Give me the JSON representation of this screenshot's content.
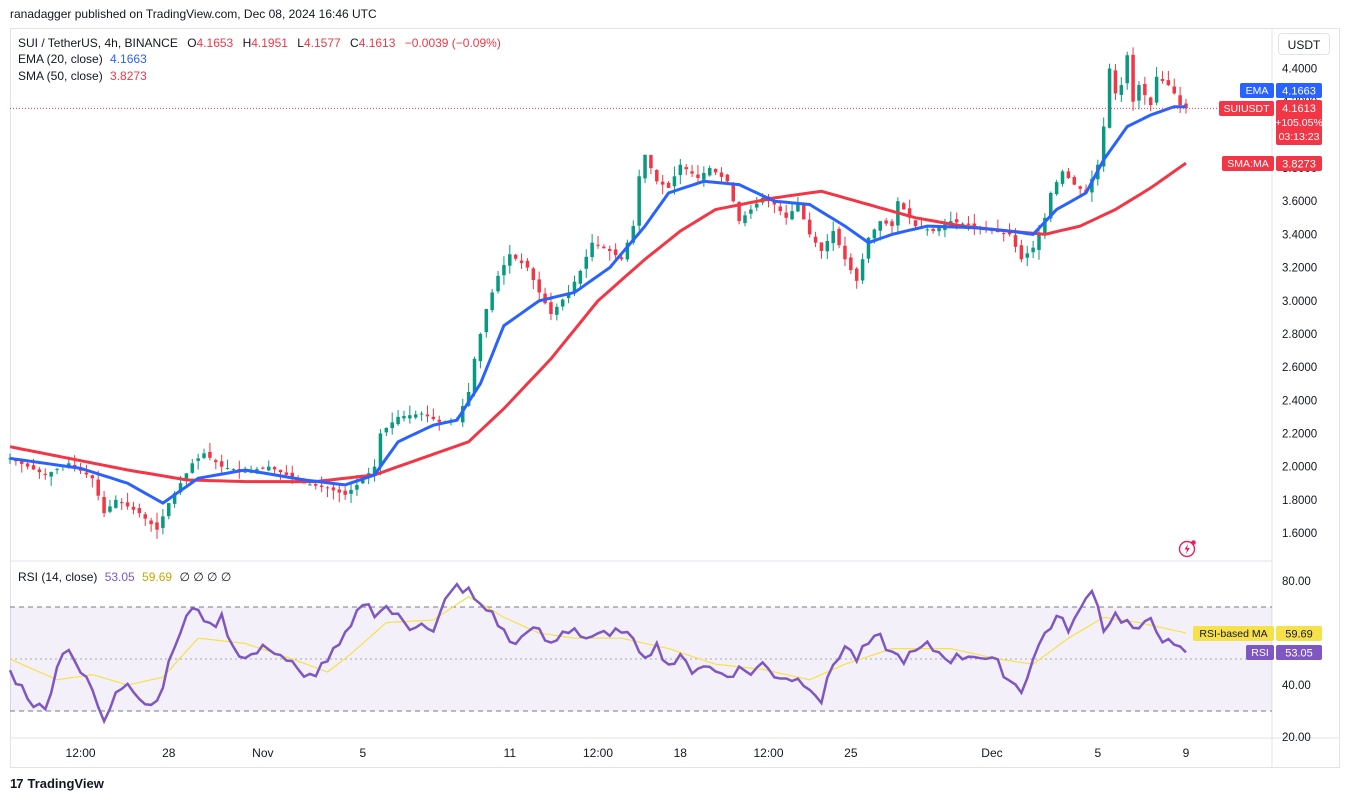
{
  "header": {
    "published_by": "ranadagger published on TradingView.com, Dec 08, 2024 16:46 UTC"
  },
  "legend": {
    "symbol": "SUI / TetherUS, 4h, BINANCE",
    "o_label": "O",
    "o": "4.1653",
    "h_label": "H",
    "h": "4.1951",
    "l_label": "L",
    "l": "4.1577",
    "c_label": "C",
    "c": "4.1613",
    "change": "−0.0039 (−0.09%)",
    "ema_label": "EMA (20, close)",
    "ema_value": "4.1663",
    "sma_label": "SMA (50, close)",
    "sma_value": "3.8273",
    "rsi_label": "RSI (14, close)",
    "rsi_value": "53.05",
    "rsi_ma_value": "59.69",
    "rsi_extra": "∅ ∅ ∅ ∅"
  },
  "price_axis": {
    "currency": "USDT",
    "ticks": [
      "4.4000",
      "4.2000",
      "4.0000",
      "3.8000",
      "3.6000",
      "3.4000",
      "3.2000",
      "3.0000",
      "2.8000",
      "2.6000",
      "2.4000",
      "2.2000",
      "2.0000",
      "1.8000",
      "1.6000"
    ]
  },
  "badges": {
    "ema_tag": "EMA",
    "ema_val": "4.1663",
    "sym_tag": "SUIUSDT",
    "sym_val": "4.1613",
    "sym_pct": "+105.05%",
    "sym_timer": "03:13:23",
    "sma_tag": "SMA:MA",
    "sma_val": "3.8273",
    "rsima_tag": "RSI-based MA",
    "rsima_val": "59.69",
    "rsi_tag": "RSI",
    "rsi_val": "53.05"
  },
  "rsi_axis": {
    "ticks": [
      "80.00",
      "40.00",
      "20.00"
    ]
  },
  "time_axis": {
    "ticks": [
      "12:00",
      "28",
      "Nov",
      "5",
      "11",
      "12:00",
      "18",
      "12:00",
      "25",
      "Dec",
      "5",
      "9"
    ]
  },
  "footer": {
    "brand": "TradingView"
  },
  "colors": {
    "up": "#089981",
    "down": "#f23645",
    "ema": "#2962ff",
    "sma": "#f23645",
    "rsi": "#7e57c2",
    "rsi_ma": "#f7e14b"
  },
  "chart_data": {
    "type": "candlestick",
    "symbol": "SUI / TetherUS",
    "interval": "4h",
    "ylim": [
      1.5,
      4.6
    ],
    "rsi_ylim": [
      20,
      85
    ],
    "rsi_levels": [
      70,
      50,
      30
    ],
    "price_anchors": [
      [
        0,
        2.05
      ],
      [
        6,
        1.95
      ],
      [
        10,
        2.02
      ],
      [
        14,
        1.93
      ],
      [
        16,
        1.72
      ],
      [
        18,
        1.8
      ],
      [
        22,
        1.72
      ],
      [
        25,
        1.62
      ],
      [
        27,
        1.78
      ],
      [
        29,
        1.9
      ],
      [
        31,
        2.02
      ],
      [
        33,
        2.08
      ],
      [
        36,
        2.0
      ],
      [
        40,
        1.97
      ],
      [
        44,
        2.0
      ],
      [
        47,
        1.95
      ],
      [
        50,
        1.9
      ],
      [
        54,
        1.87
      ],
      [
        57,
        1.83
      ],
      [
        60,
        1.92
      ],
      [
        62,
        2.0
      ],
      [
        63,
        2.2
      ],
      [
        66,
        2.3
      ],
      [
        70,
        2.32
      ],
      [
        73,
        2.27
      ],
      [
        76,
        2.28
      ],
      [
        78,
        2.45
      ],
      [
        79,
        2.65
      ],
      [
        81,
        2.95
      ],
      [
        83,
        3.15
      ],
      [
        85,
        3.28
      ],
      [
        88,
        3.2
      ],
      [
        90,
        3.05
      ],
      [
        92,
        2.92
      ],
      [
        95,
        3.05
      ],
      [
        97,
        3.18
      ],
      [
        99,
        3.35
      ],
      [
        102,
        3.3
      ],
      [
        104,
        3.25
      ],
      [
        106,
        3.45
      ],
      [
        107,
        3.75
      ],
      [
        108,
        3.88
      ],
      [
        110,
        3.72
      ],
      [
        112,
        3.68
      ],
      [
        114,
        3.82
      ],
      [
        117,
        3.74
      ],
      [
        119,
        3.8
      ],
      [
        122,
        3.72
      ],
      [
        124,
        3.48
      ],
      [
        126,
        3.55
      ],
      [
        128,
        3.62
      ],
      [
        130,
        3.58
      ],
      [
        132,
        3.5
      ],
      [
        134,
        3.58
      ],
      [
        136,
        3.4
      ],
      [
        138,
        3.3
      ],
      [
        140,
        3.42
      ],
      [
        142,
        3.25
      ],
      [
        144,
        3.12
      ],
      [
        146,
        3.38
      ],
      [
        148,
        3.48
      ],
      [
        150,
        3.45
      ],
      [
        151,
        3.6
      ],
      [
        154,
        3.45
      ],
      [
        157,
        3.42
      ],
      [
        160,
        3.48
      ],
      [
        164,
        3.45
      ],
      [
        167,
        3.42
      ],
      [
        170,
        3.4
      ],
      [
        172,
        3.25
      ],
      [
        174,
        3.32
      ],
      [
        176,
        3.5
      ],
      [
        177,
        3.65
      ],
      [
        179,
        3.78
      ],
      [
        181,
        3.7
      ],
      [
        183,
        3.65
      ],
      [
        185,
        3.82
      ],
      [
        186,
        4.05
      ],
      [
        187,
        4.4
      ],
      [
        188,
        4.25
      ],
      [
        189,
        4.3
      ],
      [
        190,
        4.48
      ],
      [
        191,
        4.2
      ],
      [
        192,
        4.3
      ],
      [
        194,
        4.18
      ],
      [
        195,
        4.35
      ],
      [
        197,
        4.3
      ],
      [
        198,
        4.25
      ],
      [
        199,
        4.18
      ],
      [
        200,
        4.16
      ]
    ],
    "ema20_anchors": [
      [
        0,
        2.05
      ],
      [
        12,
        1.99
      ],
      [
        20,
        1.9
      ],
      [
        26,
        1.78
      ],
      [
        32,
        1.93
      ],
      [
        40,
        1.98
      ],
      [
        50,
        1.92
      ],
      [
        57,
        1.89
      ],
      [
        62,
        1.95
      ],
      [
        66,
        2.15
      ],
      [
        72,
        2.25
      ],
      [
        76,
        2.28
      ],
      [
        80,
        2.5
      ],
      [
        84,
        2.85
      ],
      [
        90,
        3.0
      ],
      [
        96,
        3.05
      ],
      [
        102,
        3.2
      ],
      [
        108,
        3.45
      ],
      [
        112,
        3.65
      ],
      [
        118,
        3.72
      ],
      [
        124,
        3.7
      ],
      [
        130,
        3.6
      ],
      [
        136,
        3.58
      ],
      [
        142,
        3.45
      ],
      [
        146,
        3.35
      ],
      [
        150,
        3.4
      ],
      [
        156,
        3.45
      ],
      [
        164,
        3.44
      ],
      [
        170,
        3.42
      ],
      [
        174,
        3.4
      ],
      [
        178,
        3.55
      ],
      [
        183,
        3.65
      ],
      [
        186,
        3.85
      ],
      [
        190,
        4.05
      ],
      [
        194,
        4.12
      ],
      [
        198,
        4.17
      ],
      [
        200,
        4.17
      ]
    ],
    "sma50_anchors": [
      [
        0,
        2.12
      ],
      [
        10,
        2.05
      ],
      [
        20,
        1.98
      ],
      [
        30,
        1.92
      ],
      [
        40,
        1.91
      ],
      [
        52,
        1.91
      ],
      [
        62,
        1.95
      ],
      [
        70,
        2.05
      ],
      [
        78,
        2.15
      ],
      [
        84,
        2.35
      ],
      [
        92,
        2.65
      ],
      [
        100,
        3.0
      ],
      [
        108,
        3.25
      ],
      [
        114,
        3.42
      ],
      [
        120,
        3.55
      ],
      [
        130,
        3.62
      ],
      [
        138,
        3.66
      ],
      [
        146,
        3.58
      ],
      [
        154,
        3.5
      ],
      [
        162,
        3.45
      ],
      [
        170,
        3.42
      ],
      [
        176,
        3.4
      ],
      [
        182,
        3.45
      ],
      [
        188,
        3.55
      ],
      [
        194,
        3.68
      ],
      [
        200,
        3.83
      ]
    ],
    "rsi_anchors": [
      [
        0,
        45
      ],
      [
        4,
        33
      ],
      [
        6,
        30
      ],
      [
        8,
        48
      ],
      [
        10,
        55
      ],
      [
        12,
        45
      ],
      [
        14,
        38
      ],
      [
        16,
        25
      ],
      [
        18,
        38
      ],
      [
        20,
        42
      ],
      [
        22,
        35
      ],
      [
        24,
        32
      ],
      [
        26,
        40
      ],
      [
        28,
        55
      ],
      [
        30,
        66
      ],
      [
        32,
        70
      ],
      [
        34,
        62
      ],
      [
        36,
        66
      ],
      [
        38,
        55
      ],
      [
        40,
        50
      ],
      [
        44,
        55
      ],
      [
        48,
        48
      ],
      [
        50,
        42
      ],
      [
        52,
        45
      ],
      [
        54,
        50
      ],
      [
        56,
        55
      ],
      [
        58,
        62
      ],
      [
        60,
        72
      ],
      [
        62,
        68
      ],
      [
        64,
        70
      ],
      [
        66,
        66
      ],
      [
        68,
        62
      ],
      [
        70,
        65
      ],
      [
        72,
        60
      ],
      [
        74,
        72
      ],
      [
        76,
        78
      ],
      [
        78,
        76
      ],
      [
        80,
        70
      ],
      [
        82,
        68
      ],
      [
        84,
        60
      ],
      [
        86,
        55
      ],
      [
        88,
        62
      ],
      [
        90,
        60
      ],
      [
        92,
        55
      ],
      [
        94,
        60
      ],
      [
        96,
        62
      ],
      [
        98,
        58
      ],
      [
        100,
        60
      ],
      [
        102,
        58
      ],
      [
        104,
        62
      ],
      [
        106,
        56
      ],
      [
        108,
        52
      ],
      [
        110,
        55
      ],
      [
        112,
        48
      ],
      [
        114,
        50
      ],
      [
        116,
        46
      ],
      [
        118,
        48
      ],
      [
        120,
        45
      ],
      [
        122,
        44
      ],
      [
        124,
        46
      ],
      [
        126,
        45
      ],
      [
        128,
        48
      ],
      [
        130,
        44
      ],
      [
        134,
        42
      ],
      [
        136,
        40
      ],
      [
        138,
        34
      ],
      [
        140,
        48
      ],
      [
        142,
        55
      ],
      [
        144,
        50
      ],
      [
        146,
        56
      ],
      [
        148,
        58
      ],
      [
        150,
        52
      ],
      [
        152,
        50
      ],
      [
        156,
        55
      ],
      [
        160,
        50
      ],
      [
        164,
        52
      ],
      [
        168,
        48
      ],
      [
        170,
        42
      ],
      [
        172,
        38
      ],
      [
        174,
        50
      ],
      [
        176,
        60
      ],
      [
        178,
        66
      ],
      [
        180,
        62
      ],
      [
        182,
        68
      ],
      [
        184,
        78
      ],
      [
        186,
        62
      ],
      [
        188,
        67
      ],
      [
        190,
        64
      ],
      [
        192,
        60
      ],
      [
        194,
        66
      ],
      [
        196,
        58
      ],
      [
        198,
        54
      ],
      [
        200,
        53
      ]
    ],
    "rsi_ma_anchors": [
      [
        0,
        50
      ],
      [
        8,
        42
      ],
      [
        14,
        44
      ],
      [
        20,
        40
      ],
      [
        26,
        43
      ],
      [
        32,
        58
      ],
      [
        40,
        56
      ],
      [
        48,
        50
      ],
      [
        54,
        45
      ],
      [
        58,
        52
      ],
      [
        64,
        64
      ],
      [
        72,
        65
      ],
      [
        78,
        74
      ],
      [
        84,
        66
      ],
      [
        90,
        60
      ],
      [
        96,
        58
      ],
      [
        104,
        58
      ],
      [
        112,
        54
      ],
      [
        120,
        48
      ],
      [
        128,
        46
      ],
      [
        136,
        42
      ],
      [
        142,
        48
      ],
      [
        150,
        54
      ],
      [
        160,
        54
      ],
      [
        168,
        50
      ],
      [
        174,
        48
      ],
      [
        180,
        58
      ],
      [
        186,
        66
      ],
      [
        192,
        64
      ],
      [
        200,
        60
      ]
    ]
  }
}
